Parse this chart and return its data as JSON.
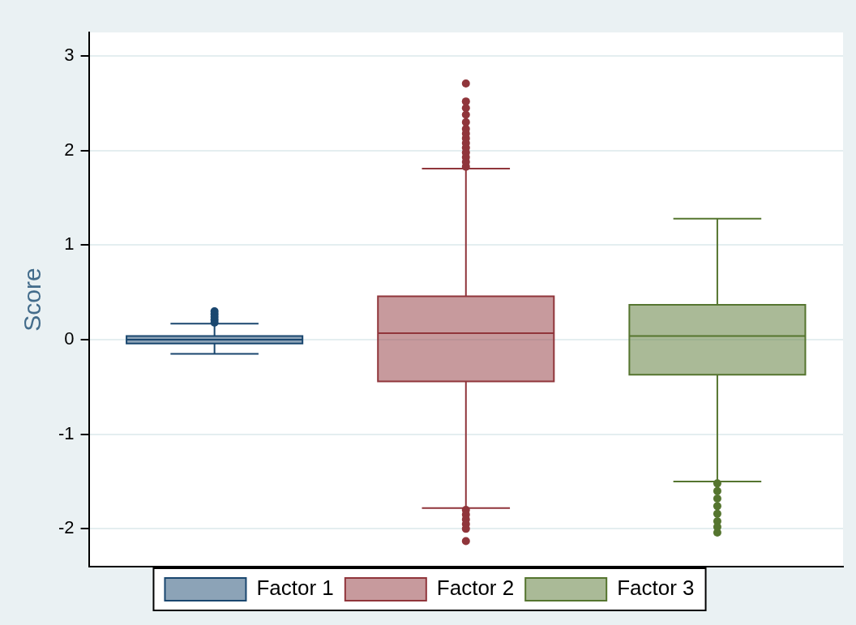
{
  "chart_data": {
    "type": "box",
    "ylabel": "Score",
    "categories": [
      null
    ],
    "ylim": [
      -2.4,
      3.25
    ],
    "yticks": [
      -2,
      -1,
      0,
      1,
      2,
      3
    ],
    "grid": "y",
    "legend": "bottom",
    "marker": "circle",
    "series": [
      {
        "name": "Factor 1",
        "color": "#1a476f",
        "boxes": [
          {
            "low": -0.15,
            "q1": -0.04,
            "median": 0.0,
            "q3": 0.04,
            "high": 0.17,
            "outliers": [
              0.18,
              0.21,
              0.24,
              0.27,
              0.3
            ]
          }
        ]
      },
      {
        "name": "Factor 2",
        "color": "#90353b",
        "boxes": [
          {
            "low": -1.78,
            "q1": -0.44,
            "median": 0.07,
            "q3": 0.46,
            "high": 1.81,
            "outliers": [
              1.83,
              1.88,
              1.93,
              1.98,
              2.03,
              2.08,
              2.13,
              2.18,
              2.23,
              2.3,
              2.38,
              2.45,
              2.52,
              2.71,
              -1.8,
              -1.85,
              -1.9,
              -1.95,
              -2.0,
              -2.13
            ]
          }
        ]
      },
      {
        "name": "Factor 3",
        "color": "#55752f",
        "boxes": [
          {
            "low": -1.5,
            "q1": -0.37,
            "median": 0.04,
            "q3": 0.37,
            "high": 1.28,
            "outliers": [
              -1.52,
              -1.6,
              -1.68,
              -1.76,
              -1.84,
              -1.92,
              -1.98,
              -2.04
            ]
          }
        ]
      }
    ]
  }
}
